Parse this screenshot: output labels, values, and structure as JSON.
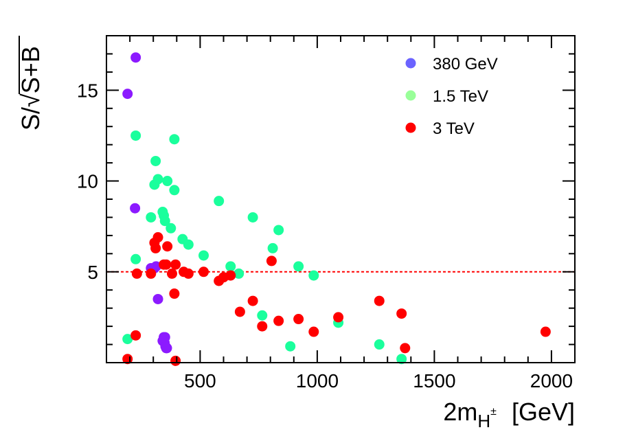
{
  "chart_data": {
    "type": "scatter",
    "title": "",
    "xlabel": "2m",
    "xlabel_subscript": "H",
    "xlabel_superscript": "±",
    "xlabel_unit": "[GeV]",
    "ylabel_prefix": "S/",
    "ylabel_radicand": "S+B",
    "xlim": [
      100,
      2100
    ],
    "ylim": [
      0,
      18
    ],
    "xticks": [
      500,
      1000,
      1500,
      2000
    ],
    "xtick_labels": [
      "500",
      "1000",
      "1500",
      "2000"
    ],
    "yticks": [
      5,
      10,
      15
    ],
    "ytick_labels": [
      "5",
      "10",
      "15"
    ],
    "reference_line": {
      "y": 5,
      "color": "#ff0000",
      "style": "dotted"
    },
    "legend_position": "top-right",
    "series": [
      {
        "name": "380 GeV",
        "legend_color": "#6b63ff",
        "color": "#8c1aff",
        "points": [
          [
            190,
            14.8
          ],
          [
            225,
            16.8
          ],
          [
            222,
            8.5
          ],
          [
            290,
            5.2
          ],
          [
            305,
            5.2
          ],
          [
            312,
            5.3
          ],
          [
            320,
            3.5
          ],
          [
            345,
            1.4
          ],
          [
            350,
            1.4
          ],
          [
            340,
            1.2
          ],
          [
            348,
            1.1
          ],
          [
            352,
            0.9
          ],
          [
            355,
            0.8
          ],
          [
            358,
            0.8
          ]
        ]
      },
      {
        "name": "1.5 TeV",
        "legend_color": "#99ff99",
        "color": "#1aff9c",
        "points": [
          [
            225,
            12.5
          ],
          [
            310,
            11.1
          ],
          [
            390,
            12.3
          ],
          [
            305,
            9.8
          ],
          [
            320,
            10.1
          ],
          [
            360,
            10.0
          ],
          [
            390,
            9.5
          ],
          [
            290,
            8.0
          ],
          [
            340,
            8.3
          ],
          [
            345,
            8.1
          ],
          [
            350,
            7.8
          ],
          [
            375,
            7.4
          ],
          [
            425,
            6.8
          ],
          [
            450,
            6.5
          ],
          [
            515,
            5.9
          ],
          [
            580,
            8.9
          ],
          [
            725,
            8.0
          ],
          [
            835,
            7.3
          ],
          [
            810,
            6.3
          ],
          [
            225,
            5.7
          ],
          [
            630,
            5.3
          ],
          [
            665,
            4.9
          ],
          [
            920,
            5.3
          ],
          [
            985,
            4.8
          ],
          [
            190,
            1.3
          ],
          [
            765,
            2.6
          ],
          [
            885,
            0.9
          ],
          [
            1090,
            2.2
          ],
          [
            1265,
            1.0
          ],
          [
            1360,
            0.2
          ]
        ]
      },
      {
        "name": "3 TeV",
        "legend_color": "#ff0000",
        "color": "#ff0000",
        "points": [
          [
            190,
            0.2
          ],
          [
            225,
            1.5
          ],
          [
            230,
            4.9
          ],
          [
            290,
            4.9
          ],
          [
            305,
            6.6
          ],
          [
            310,
            6.3
          ],
          [
            320,
            6.9
          ],
          [
            360,
            6.4
          ],
          [
            345,
            5.4
          ],
          [
            355,
            5.4
          ],
          [
            380,
            4.9
          ],
          [
            395,
            5.4
          ],
          [
            430,
            5.0
          ],
          [
            450,
            4.9
          ],
          [
            515,
            5.0
          ],
          [
            580,
            4.5
          ],
          [
            600,
            4.7
          ],
          [
            630,
            4.8
          ],
          [
            395,
            0.1
          ],
          [
            390,
            3.8
          ],
          [
            670,
            2.8
          ],
          [
            725,
            3.4
          ],
          [
            765,
            2.0
          ],
          [
            805,
            5.6
          ],
          [
            835,
            2.3
          ],
          [
            920,
            2.4
          ],
          [
            985,
            1.7
          ],
          [
            1090,
            2.5
          ],
          [
            1265,
            3.4
          ],
          [
            1360,
            2.7
          ],
          [
            1375,
            0.8
          ],
          [
            1975,
            1.7
          ]
        ]
      }
    ]
  }
}
